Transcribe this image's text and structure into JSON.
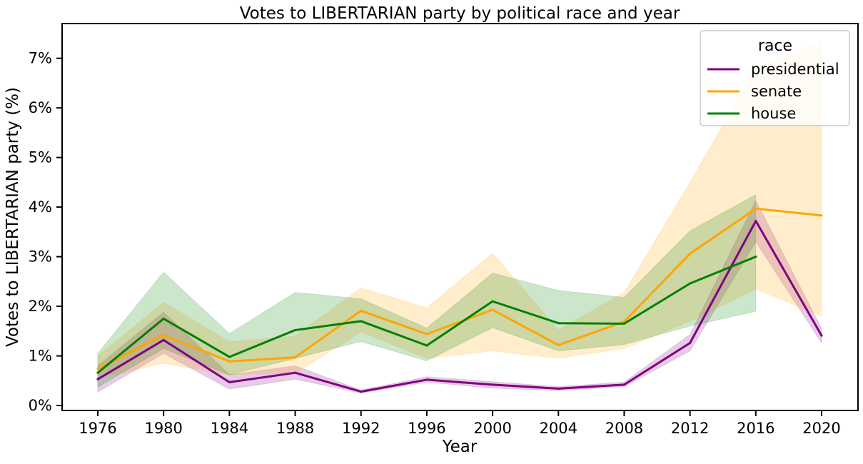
{
  "chart_data": {
    "type": "line",
    "title": "Votes to LIBERTARIAN party by political race and year",
    "xlabel": "Year",
    "ylabel": "Votes to LIBERTARIAN party (%)",
    "x": [
      1976,
      1980,
      1984,
      1988,
      1992,
      1996,
      2000,
      2004,
      2008,
      2012,
      2016,
      2020
    ],
    "x_tick_labels": [
      "1976",
      "1980",
      "1984",
      "1988",
      "1992",
      "1996",
      "2000",
      "2004",
      "2008",
      "2012",
      "2016",
      "2020"
    ],
    "ylim": [
      -0.1,
      7.7
    ],
    "y_ticks": [
      0,
      1,
      2,
      3,
      4,
      5,
      6,
      7
    ],
    "y_tick_labels": [
      "0%",
      "1%",
      "2%",
      "3%",
      "4%",
      "5%",
      "6%",
      "7%"
    ],
    "grid": false,
    "legend": {
      "title": "race",
      "placement": "top-right"
    },
    "series": [
      {
        "name": "presidential",
        "color": "#800080",
        "x": [
          1976,
          1980,
          1984,
          1988,
          1992,
          1996,
          2000,
          2004,
          2008,
          2012,
          2016,
          2020
        ],
        "values": [
          0.53,
          1.32,
          0.47,
          0.66,
          0.28,
          0.52,
          0.42,
          0.34,
          0.42,
          1.26,
          3.72,
          1.41
        ],
        "ci_lower": [
          0.27,
          1.05,
          0.33,
          0.53,
          0.25,
          0.47,
          0.35,
          0.3,
          0.38,
          1.1,
          3.3,
          1.26
        ],
        "ci_upper": [
          0.8,
          1.88,
          0.62,
          0.8,
          0.31,
          0.58,
          0.48,
          0.38,
          0.47,
          1.43,
          4.13,
          1.55
        ]
      },
      {
        "name": "senate",
        "color": "#ffa500",
        "x": [
          1976,
          1980,
          1984,
          1988,
          1992,
          1996,
          2000,
          2004,
          2008,
          2012,
          2016,
          2020
        ],
        "values": [
          0.74,
          1.42,
          0.89,
          0.97,
          1.91,
          1.44,
          1.93,
          1.22,
          1.69,
          3.06,
          3.97,
          3.83
        ],
        "ci_lower": [
          0.55,
          0.85,
          0.62,
          0.65,
          1.48,
          0.95,
          1.1,
          0.95,
          1.15,
          1.7,
          2.35,
          1.8
        ],
        "ci_upper": [
          1.0,
          2.08,
          1.28,
          1.4,
          2.37,
          1.97,
          3.07,
          1.52,
          2.28,
          4.5,
          6.8,
          7.35
        ]
      },
      {
        "name": "house",
        "color": "#008000",
        "x": [
          1976,
          1980,
          1984,
          1988,
          1992,
          1996,
          2000,
          2004,
          2008,
          2012,
          2016
        ],
        "values": [
          0.66,
          1.75,
          0.98,
          1.52,
          1.7,
          1.21,
          2.1,
          1.66,
          1.65,
          2.46,
          3.0
        ],
        "ci_lower": [
          0.37,
          1.15,
          0.62,
          0.95,
          1.29,
          0.9,
          1.57,
          1.1,
          1.23,
          1.6,
          1.9
        ],
        "ci_upper": [
          1.05,
          2.69,
          1.45,
          2.28,
          2.15,
          1.56,
          2.67,
          2.32,
          2.18,
          3.52,
          4.25
        ]
      }
    ]
  }
}
